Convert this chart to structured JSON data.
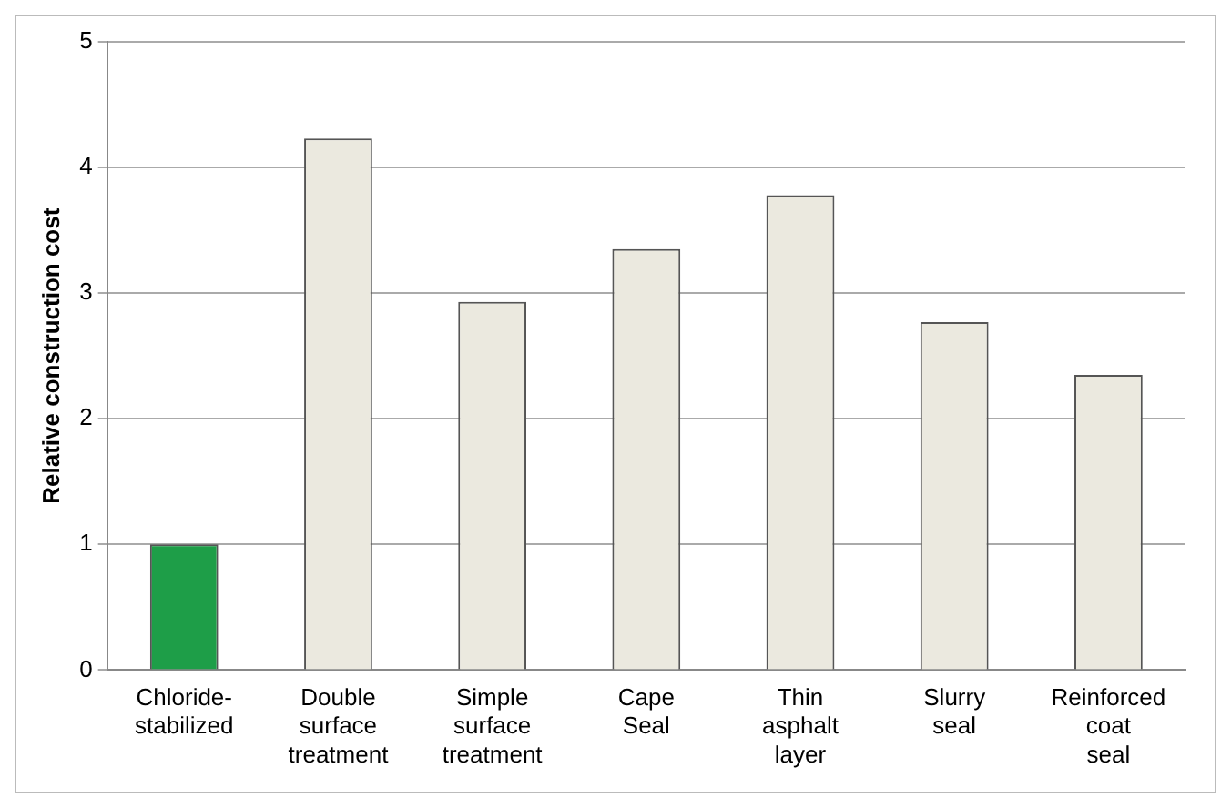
{
  "chart_data": {
    "type": "bar",
    "ylabel": "Relative construction cost",
    "categories": [
      "Chloride-stabilized",
      "Double surface treatment",
      "Simple surface treatment",
      "Cape Seal",
      "Thin asphalt layer",
      "Slurry seal",
      "Reinforced coat seal"
    ],
    "values": [
      1.0,
      4.23,
      2.93,
      3.35,
      3.78,
      2.77,
      2.35
    ],
    "colors": [
      "#1e9e48",
      "#ebe9df",
      "#ebe9df",
      "#ebe9df",
      "#ebe9df",
      "#ebe9df",
      "#ebe9df"
    ],
    "ylim": [
      0,
      5
    ],
    "yticks": [
      0,
      1,
      2,
      3,
      4,
      5
    ],
    "grid": "y",
    "legend": false
  }
}
